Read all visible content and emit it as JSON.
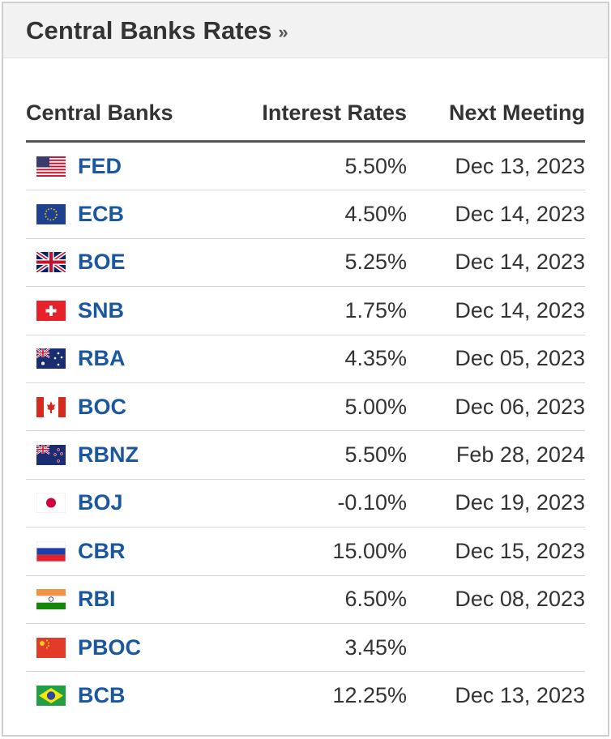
{
  "header": {
    "title": "Central Banks Rates",
    "arrow": "»"
  },
  "columns": {
    "bank": "Central Banks",
    "rate": "Interest Rates",
    "next": "Next Meeting"
  },
  "rows": [
    {
      "bank": "FED",
      "flag": "us-flag-icon",
      "rate": "5.50%",
      "next": "Dec 13, 2023"
    },
    {
      "bank": "ECB",
      "flag": "eu-flag-icon",
      "rate": "4.50%",
      "next": "Dec 14, 2023"
    },
    {
      "bank": "BOE",
      "flag": "uk-flag-icon",
      "rate": "5.25%",
      "next": "Dec 14, 2023"
    },
    {
      "bank": "SNB",
      "flag": "ch-flag-icon",
      "rate": "1.75%",
      "next": "Dec 14, 2023"
    },
    {
      "bank": "RBA",
      "flag": "au-flag-icon",
      "rate": "4.35%",
      "next": "Dec 05, 2023"
    },
    {
      "bank": "BOC",
      "flag": "ca-flag-icon",
      "rate": "5.00%",
      "next": "Dec 06, 2023"
    },
    {
      "bank": "RBNZ",
      "flag": "nz-flag-icon",
      "rate": "5.50%",
      "next": "Feb 28, 2024"
    },
    {
      "bank": "BOJ",
      "flag": "jp-flag-icon",
      "rate": "-0.10%",
      "next": "Dec 19, 2023"
    },
    {
      "bank": "CBR",
      "flag": "ru-flag-icon",
      "rate": "15.00%",
      "next": "Dec 15, 2023"
    },
    {
      "bank": "RBI",
      "flag": "in-flag-icon",
      "rate": "6.50%",
      "next": "Dec 08, 2023"
    },
    {
      "bank": "PBOC",
      "flag": "cn-flag-icon",
      "rate": "3.45%",
      "next": ""
    },
    {
      "bank": "BCB",
      "flag": "br-flag-icon",
      "rate": "12.25%",
      "next": "Dec 13, 2023"
    }
  ]
}
